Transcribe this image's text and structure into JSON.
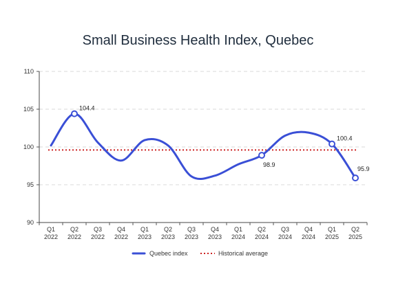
{
  "chart_data": {
    "type": "line",
    "title": "Small Business Health Index, Quebec",
    "xlabel": "",
    "ylabel": "",
    "ylim": [
      90,
      110
    ],
    "yticks": [
      90,
      95,
      100,
      105,
      110
    ],
    "categories": [
      [
        "Q1",
        "2022"
      ],
      [
        "Q2",
        "2022"
      ],
      [
        "Q3",
        "2022"
      ],
      [
        "Q4",
        "2022"
      ],
      [
        "Q1",
        "2023"
      ],
      [
        "Q2",
        "2023"
      ],
      [
        "Q3",
        "2023"
      ],
      [
        "Q4",
        "2023"
      ],
      [
        "Q1",
        "2024"
      ],
      [
        "Q2",
        "2024"
      ],
      [
        "Q3",
        "2024"
      ],
      [
        "Q4",
        "2024"
      ],
      [
        "Q1",
        "2025"
      ],
      [
        "Q2",
        "2025"
      ]
    ],
    "series": [
      {
        "name": "Quebec index",
        "color": "#3a4fd6",
        "values": [
          100.2,
          104.4,
          100.6,
          98.2,
          100.9,
          100.2,
          96.1,
          96.2,
          97.7,
          98.9,
          101.5,
          101.9,
          100.4,
          95.9
        ]
      }
    ],
    "reference_lines": [
      {
        "name": "Historical average",
        "value": 99.6,
        "color": "#cc2222",
        "style": "dotted"
      }
    ],
    "annotated_points": [
      {
        "index": 1,
        "label": "104.4",
        "pos": "right"
      },
      {
        "index": 9,
        "label": "98.9",
        "pos": "below"
      },
      {
        "index": 12,
        "label": "100.4",
        "pos": "right"
      },
      {
        "index": 13,
        "label": "95.9",
        "pos": "above"
      }
    ],
    "grid": true,
    "legend": "bottom"
  }
}
